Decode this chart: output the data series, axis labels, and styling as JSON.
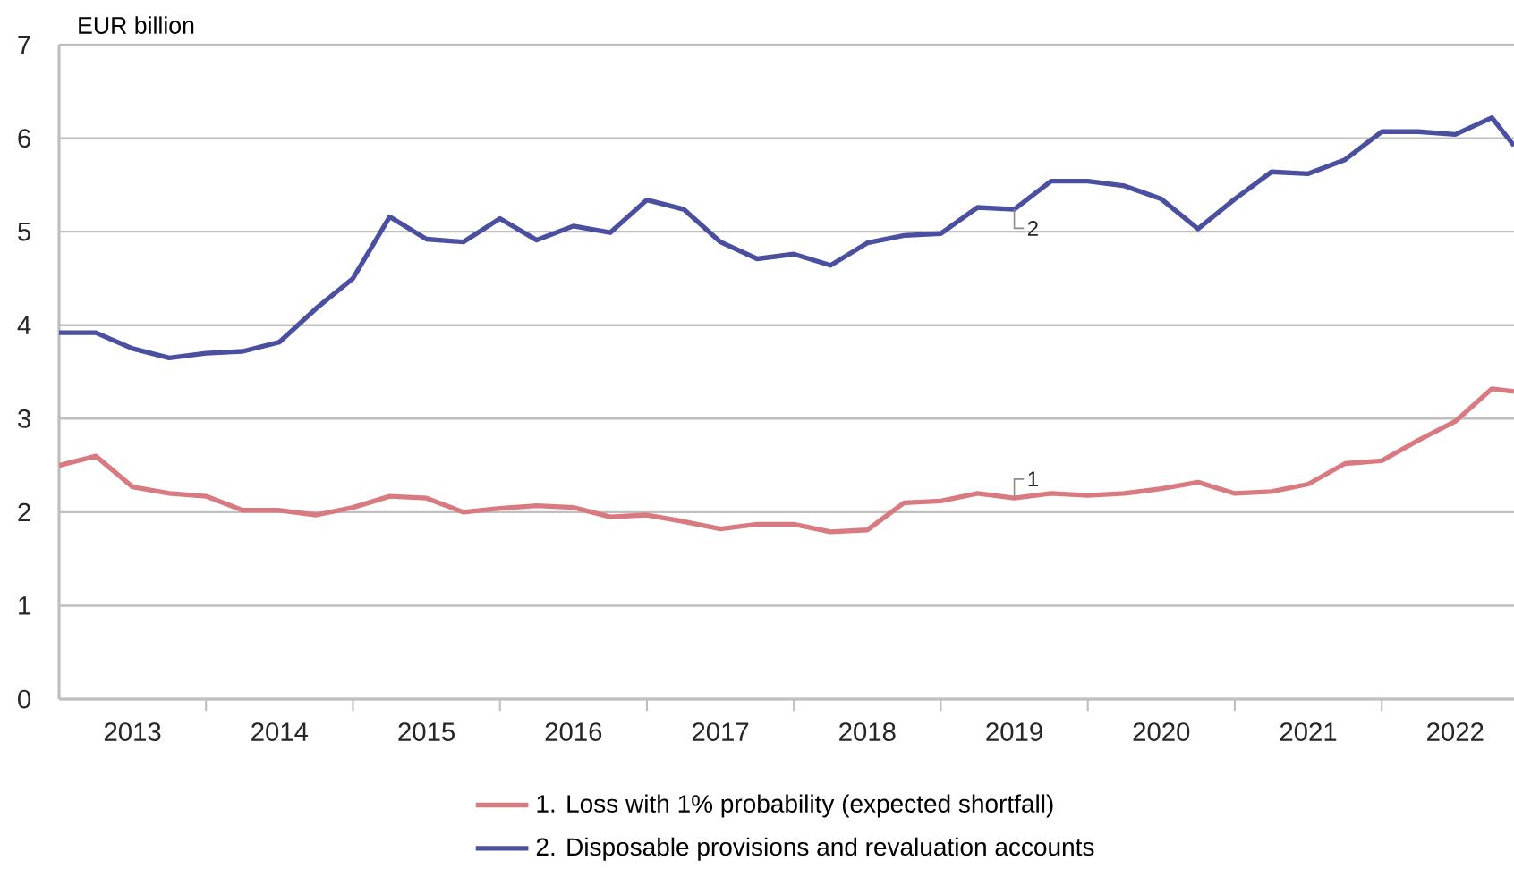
{
  "chart_data": {
    "type": "line",
    "ylabel": "EUR billion",
    "x": [
      2013,
      2013.25,
      2013.5,
      2013.75,
      2014,
      2014.25,
      2014.5,
      2014.75,
      2015,
      2015.25,
      2015.5,
      2015.75,
      2016,
      2016.25,
      2016.5,
      2016.75,
      2017,
      2017.25,
      2017.5,
      2017.75,
      2018,
      2018.25,
      2018.5,
      2018.75,
      2019,
      2019.25,
      2019.5,
      2019.75,
      2020,
      2020.25,
      2020.5,
      2020.75,
      2021,
      2021.25,
      2021.5,
      2021.75,
      2022,
      2022.25,
      2022.5,
      2022.75,
      2022.9
    ],
    "series": [
      {
        "name": "1. Loss with 1% probability (expected shortfall)",
        "color": "#d97a80",
        "values": [
          2.5,
          2.6,
          2.27,
          2.2,
          2.17,
          2.02,
          2.02,
          1.97,
          2.05,
          2.17,
          2.15,
          2.0,
          2.04,
          2.07,
          2.05,
          1.95,
          1.97,
          1.9,
          1.82,
          1.87,
          1.87,
          1.79,
          1.81,
          2.1,
          2.12,
          2.2,
          2.15,
          2.2,
          2.18,
          2.2,
          2.25,
          2.32,
          2.2,
          2.22,
          2.3,
          2.52,
          2.55,
          2.77,
          2.97,
          3.32,
          3.29
        ]
      },
      {
        "name": "2. Disposable provisions and revaluation accounts",
        "color": "#4a4fa0",
        "values": [
          3.92,
          3.92,
          3.75,
          3.65,
          3.7,
          3.72,
          3.82,
          4.18,
          4.5,
          5.16,
          4.92,
          4.89,
          5.14,
          4.91,
          5.06,
          4.99,
          5.34,
          5.24,
          4.89,
          4.71,
          4.76,
          4.64,
          4.88,
          4.96,
          4.98,
          5.26,
          5.24,
          5.54,
          5.54,
          5.49,
          5.35,
          5.03,
          5.35,
          5.64,
          5.62,
          5.77,
          6.07,
          6.07,
          6.04,
          6.22,
          5.92
        ]
      }
    ],
    "xlim": [
      2013,
      2022.9
    ],
    "xticks": [
      {
        "value": 2013.5,
        "label": "2013"
      },
      {
        "value": 2014,
        "label": null
      },
      {
        "value": 2014.5,
        "label": "2014"
      },
      {
        "value": 2015,
        "label": null
      },
      {
        "value": 2015.5,
        "label": "2015"
      },
      {
        "value": 2016,
        "label": null
      },
      {
        "value": 2016.5,
        "label": "2016"
      },
      {
        "value": 2017,
        "label": null
      },
      {
        "value": 2017.5,
        "label": "2017"
      },
      {
        "value": 2018,
        "label": null
      },
      {
        "value": 2018.5,
        "label": "2018"
      },
      {
        "value": 2019,
        "label": null
      },
      {
        "value": 2019.5,
        "label": "2019"
      },
      {
        "value": 2020,
        "label": null
      },
      {
        "value": 2020.5,
        "label": "2020"
      },
      {
        "value": 2021,
        "label": null
      },
      {
        "value": 2021.5,
        "label": "2021"
      },
      {
        "value": 2022,
        "label": null
      },
      {
        "value": 2022.5,
        "label": "2022"
      }
    ],
    "ylim": [
      0,
      7
    ],
    "yticks": [
      0,
      1,
      2,
      3,
      4,
      5,
      6,
      7
    ],
    "grid": "y",
    "legend": "bottom",
    "line_style": "solid",
    "marker": "none",
    "annotations": [
      {
        "text": "1",
        "x": 2019.5,
        "y": 2.15
      },
      {
        "text": "2",
        "x": 2019.5,
        "y": 5.24
      }
    ]
  }
}
